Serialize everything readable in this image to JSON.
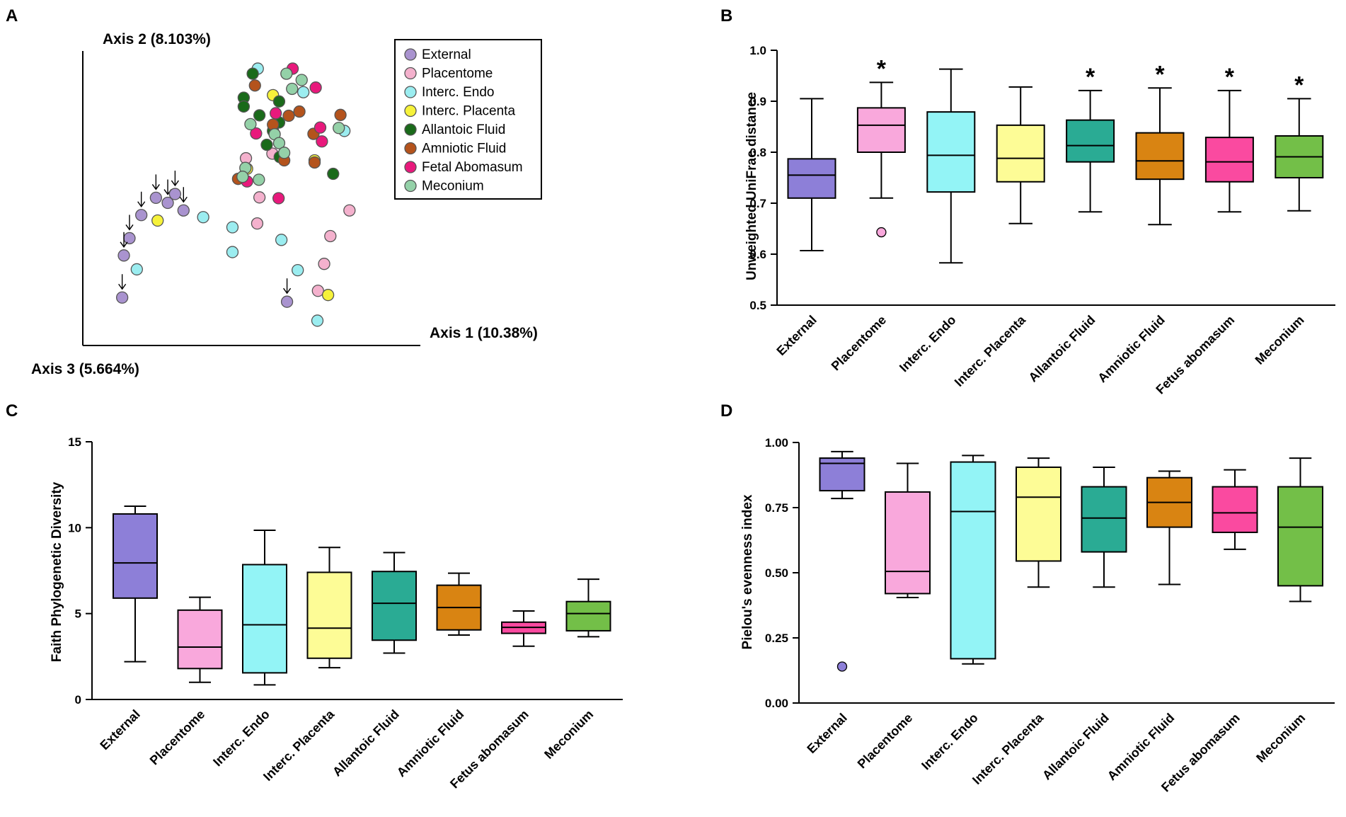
{
  "panels": {
    "a": "A",
    "b": "B",
    "c": "C",
    "d": "D"
  },
  "colors": {
    "External": "#8d7fd8",
    "Placentome": "#f9a8dc",
    "Interc. Endo": "#93f4f6",
    "Interc. Placenta": "#fdfc96",
    "Allantoic Fluid": "#2aab94",
    "Amniotic Fluid": "#d98412",
    "Fetal Abomasum": "#fa4aa0",
    "Fetus abomasum": "#fa4aa0",
    "Meconium": "#73bf48"
  },
  "chart_data": [
    {
      "id": "A",
      "type": "scatter",
      "xlabel": "Axis 1 (10.38%)",
      "ylabel": "Axis 2 (8.103%)",
      "zlabel": "Axis 3 (5.664%)",
      "legend": {
        "position": "top-right",
        "entries": [
          {
            "label": "External",
            "color": "#a993cf"
          },
          {
            "label": "Placentome",
            "color": "#f4b1cd"
          },
          {
            "label": "Interc. Endo",
            "color": "#9bedf0"
          },
          {
            "label": "Interc. Placenta",
            "color": "#f6f23a"
          },
          {
            "label": "Allantoic Fluid",
            "color": "#1a6a1a"
          },
          {
            "label": "Amniotic Fluid",
            "color": "#b4531c"
          },
          {
            "label": "Fetal Abomasum",
            "color": "#e8197c"
          },
          {
            "label": "Meconium",
            "color": "#94d1a8"
          }
        ]
      },
      "series": [
        {
          "name": "External",
          "points": [
            [
              0.83,
              6.55
            ],
            [
              1.04,
              7.1
            ],
            [
              1.3,
              7.51
            ],
            [
              1.51,
              7.39
            ],
            [
              1.64,
              7.6
            ],
            [
              1.79,
              7.21
            ],
            [
              0.7,
              5.14
            ],
            [
              0.73,
              6.14
            ],
            [
              3.63,
              5.04
            ]
          ],
          "arrows": [
            0,
            1,
            2,
            3,
            4,
            5,
            6,
            7,
            8
          ]
        },
        {
          "name": "Placentome",
          "points": [
            [
              3.37,
              8.56
            ],
            [
              2.9,
              8.45
            ],
            [
              3.14,
              7.52
            ],
            [
              4.74,
              7.21
            ],
            [
              3.1,
              6.9
            ],
            [
              4.4,
              6.6
            ],
            [
              4.29,
              5.94
            ],
            [
              4.18,
              5.3
            ]
          ]
        },
        {
          "name": "Interc. Endo",
          "points": [
            [
              3.11,
              10.58
            ],
            [
              3.92,
              10.02
            ],
            [
              4.65,
              9.1
            ],
            [
              2.14,
              7.05
            ],
            [
              2.66,
              6.81
            ],
            [
              3.53,
              6.51
            ],
            [
              3.82,
              5.79
            ],
            [
              2.66,
              6.22
            ],
            [
              0.96,
              5.81
            ],
            [
              4.17,
              4.59
            ]
          ]
        },
        {
          "name": "Interc. Placenta",
          "points": [
            [
              3.38,
              9.95
            ],
            [
              4.12,
              8.4
            ],
            [
              2.92,
              8.2
            ],
            [
              1.33,
              6.97
            ],
            [
              4.36,
              5.2
            ]
          ]
        },
        {
          "name": "Allantoic Fluid",
          "points": [
            [
              3.02,
              10.46
            ],
            [
              2.86,
              9.89
            ],
            [
              3.14,
              9.47
            ],
            [
              3.49,
              9.3
            ],
            [
              2.86,
              9.68
            ],
            [
              3.49,
              9.8
            ],
            [
              3.38,
              9.1
            ],
            [
              3.27,
              8.77
            ],
            [
              3.5,
              8.48
            ],
            [
              4.45,
              8.08
            ]
          ]
        },
        {
          "name": "Amniotic Fluid",
          "points": [
            [
              3.06,
              10.18
            ],
            [
              3.38,
              9.25
            ],
            [
              3.85,
              9.56
            ],
            [
              3.66,
              9.46
            ],
            [
              4.1,
              9.03
            ],
            [
              4.12,
              8.35
            ],
            [
              4.58,
              9.48
            ],
            [
              3.58,
              8.4
            ],
            [
              2.76,
              7.96
            ]
          ]
        },
        {
          "name": "Fetal Abomasum",
          "points": [
            [
              3.73,
              10.58
            ],
            [
              4.14,
              10.13
            ],
            [
              3.43,
              9.52
            ],
            [
              3.08,
              9.04
            ],
            [
              4.22,
              9.18
            ],
            [
              4.25,
              8.85
            ],
            [
              2.92,
              7.9
            ],
            [
              3.48,
              7.5
            ]
          ]
        },
        {
          "name": "Meconium",
          "points": [
            [
              3.62,
              10.46
            ],
            [
              3.89,
              10.31
            ],
            [
              3.72,
              10.1
            ],
            [
              2.98,
              9.26
            ],
            [
              3.41,
              9.02
            ],
            [
              3.49,
              8.81
            ],
            [
              3.58,
              8.58
            ],
            [
              2.89,
              8.22
            ],
            [
              2.84,
              8.01
            ],
            [
              4.55,
              9.17
            ],
            [
              3.13,
              7.94
            ]
          ]
        }
      ]
    },
    {
      "id": "B",
      "type": "box",
      "ylabel": "Unweighted UniFrac distance",
      "ylim": [
        0.5,
        1.0
      ],
      "yticks": [
        "0.5",
        "0.6",
        "0.7",
        "0.8",
        "0.9",
        "1.0"
      ],
      "grid": false,
      "categories": [
        "External",
        "Placentome",
        "Interc. Endo",
        "Interc. Placenta",
        "Allantoic Fluid",
        "Amniotic Fluid",
        "Fetus abomasum",
        "Meconium"
      ],
      "boxes": [
        {
          "min": 0.607,
          "q1": 0.71,
          "median": 0.755,
          "q3": 0.787,
          "max": 0.905,
          "outliers": [],
          "sig": ""
        },
        {
          "min": 0.71,
          "q1": 0.8,
          "median": 0.853,
          "q3": 0.887,
          "max": 0.937,
          "outliers": [
            0.643
          ],
          "sig": "*"
        },
        {
          "min": 0.583,
          "q1": 0.722,
          "median": 0.794,
          "q3": 0.879,
          "max": 0.963,
          "outliers": [],
          "sig": ""
        },
        {
          "min": 0.66,
          "q1": 0.742,
          "median": 0.788,
          "q3": 0.853,
          "max": 0.928,
          "outliers": [],
          "sig": ""
        },
        {
          "min": 0.683,
          "q1": 0.781,
          "median": 0.813,
          "q3": 0.863,
          "max": 0.921,
          "outliers": [],
          "sig": "*"
        },
        {
          "min": 0.658,
          "q1": 0.747,
          "median": 0.783,
          "q3": 0.838,
          "max": 0.926,
          "outliers": [],
          "sig": "*"
        },
        {
          "min": 0.683,
          "q1": 0.742,
          "median": 0.781,
          "q3": 0.829,
          "max": 0.921,
          "outliers": [],
          "sig": "*"
        },
        {
          "min": 0.685,
          "q1": 0.75,
          "median": 0.791,
          "q3": 0.832,
          "max": 0.905,
          "outliers": [],
          "sig": "*"
        }
      ]
    },
    {
      "id": "C",
      "type": "box",
      "ylabel": "Faith Phylogenetic Diversity",
      "ylim": [
        0,
        15
      ],
      "yticks": [
        "0",
        "5",
        "10",
        "15"
      ],
      "grid": false,
      "categories": [
        "External",
        "Placentome",
        "Interc. Endo",
        "Interc. Placenta",
        "Allantoic Fluid",
        "Amniotic Fluid",
        "Fetus abomasum",
        "Meconium"
      ],
      "boxes": [
        {
          "min": 2.2,
          "q1": 5.9,
          "median": 7.95,
          "q3": 10.8,
          "max": 11.25,
          "outliers": []
        },
        {
          "min": 1.0,
          "q1": 1.8,
          "median": 3.05,
          "q3": 5.2,
          "max": 5.95,
          "outliers": []
        },
        {
          "min": 0.85,
          "q1": 1.55,
          "median": 4.35,
          "q3": 7.85,
          "max": 9.85,
          "outliers": []
        },
        {
          "min": 1.85,
          "q1": 2.4,
          "median": 4.15,
          "q3": 7.4,
          "max": 8.85,
          "outliers": []
        },
        {
          "min": 2.7,
          "q1": 3.45,
          "median": 5.6,
          "q3": 7.45,
          "max": 8.55,
          "outliers": []
        },
        {
          "min": 3.75,
          "q1": 4.05,
          "median": 5.35,
          "q3": 6.65,
          "max": 7.35,
          "outliers": []
        },
        {
          "min": 3.1,
          "q1": 3.85,
          "median": 4.2,
          "q3": 4.5,
          "max": 5.15,
          "outliers": []
        },
        {
          "min": 3.65,
          "q1": 4.0,
          "median": 5.0,
          "q3": 5.7,
          "max": 7.0,
          "outliers": []
        }
      ]
    },
    {
      "id": "D",
      "type": "box",
      "ylabel": "Pielou's evenness index",
      "ylim": [
        0,
        1.0
      ],
      "yticks": [
        "0.00",
        "0.25",
        "0.50",
        "0.75",
        "1.00"
      ],
      "grid": false,
      "categories": [
        "External",
        "Placentome",
        "Interc. Endo",
        "Interc. Placenta",
        "Allantoic Fluid",
        "Amniotic Fluid",
        "Fetus abomasum",
        "Meconium"
      ],
      "boxes": [
        {
          "min": 0.785,
          "q1": 0.815,
          "median": 0.92,
          "q3": 0.94,
          "max": 0.965,
          "outliers": [
            0.14
          ]
        },
        {
          "min": 0.405,
          "q1": 0.42,
          "median": 0.505,
          "q3": 0.81,
          "max": 0.92,
          "outliers": []
        },
        {
          "min": 0.15,
          "q1": 0.17,
          "median": 0.735,
          "q3": 0.925,
          "max": 0.95,
          "outliers": []
        },
        {
          "min": 0.445,
          "q1": 0.545,
          "median": 0.79,
          "q3": 0.905,
          "max": 0.94,
          "outliers": []
        },
        {
          "min": 0.445,
          "q1": 0.58,
          "median": 0.71,
          "q3": 0.83,
          "max": 0.905,
          "outliers": []
        },
        {
          "min": 0.455,
          "q1": 0.675,
          "median": 0.77,
          "q3": 0.865,
          "max": 0.89,
          "outliers": []
        },
        {
          "min": 0.59,
          "q1": 0.655,
          "median": 0.73,
          "q3": 0.83,
          "max": 0.895,
          "outliers": []
        },
        {
          "min": 0.39,
          "q1": 0.45,
          "median": 0.675,
          "q3": 0.83,
          "max": 0.94,
          "outliers": []
        }
      ]
    }
  ]
}
